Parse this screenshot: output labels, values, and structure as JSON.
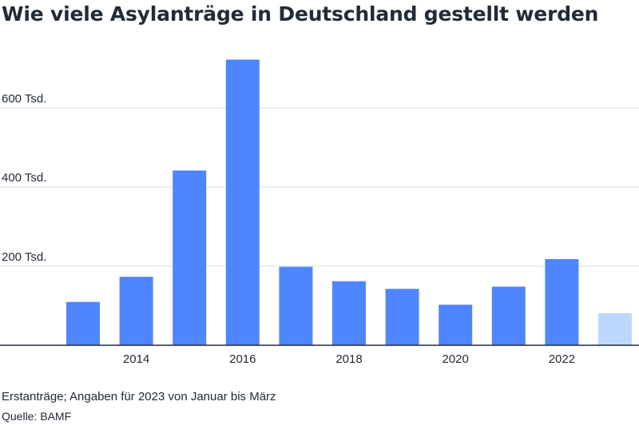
{
  "chart_data": {
    "type": "bar",
    "title": "Wie viele Asylanträge in Deutschland gestellt werden",
    "xlabel": "",
    "ylabel": "",
    "x": [
      2013,
      2014,
      2015,
      2016,
      2017,
      2018,
      2019,
      2020,
      2021,
      2022,
      2023
    ],
    "values": [
      109580,
      173072,
      441899,
      722370,
      198317,
      161931,
      142509,
      102581,
      148233,
      217774,
      80978
    ],
    "ylim": [
      0,
      760000
    ],
    "yticks": [
      {
        "value": 200000,
        "label": "200 Tsd."
      },
      {
        "value": 400000,
        "label": "400 Tsd."
      },
      {
        "value": 600000,
        "label": "600 Tsd."
      }
    ],
    "xticks": [
      {
        "value": 2014,
        "label": "2014"
      },
      {
        "value": 2016,
        "label": "2016"
      },
      {
        "value": 2018,
        "label": "2018"
      },
      {
        "value": 2020,
        "label": "2020"
      },
      {
        "value": 2022,
        "label": "2022"
      }
    ],
    "grid": true,
    "colors": {
      "bar": "#4f86ff",
      "partial_bar": "#bdd8ff",
      "gridline": "#d9dde3",
      "baseline": "#222b36"
    },
    "partial_years": [
      2023
    ],
    "footnote": "Erstanträge; Angaben für 2023 von Januar bis März",
    "source": "Quelle: BAMF"
  }
}
